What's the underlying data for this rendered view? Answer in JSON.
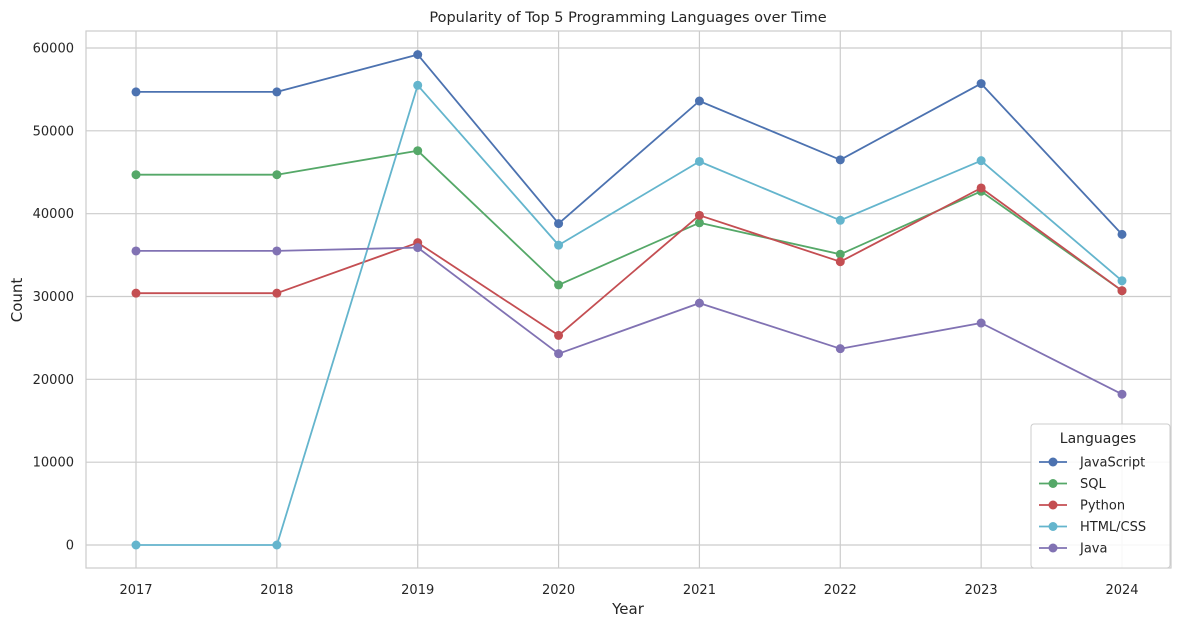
{
  "chart_data": {
    "type": "line",
    "title": "Popularity of Top 5 Programming Languages over Time",
    "xlabel": "Year",
    "ylabel": "Count",
    "x": [
      "2017",
      "2018",
      "2019",
      "2020",
      "2021",
      "2022",
      "2023",
      "2024"
    ],
    "y_ticks": [
      "0",
      "10000",
      "20000",
      "30000",
      "40000",
      "50000",
      "60000"
    ],
    "ylim": [
      -2900,
      62300
    ],
    "grid": true,
    "legend": {
      "title": "Languages",
      "placement": "lower-right"
    },
    "series": [
      {
        "name": "JavaScript",
        "color": "#4c72b0",
        "values": [
          54700,
          54700,
          59200,
          38800,
          53600,
          46500,
          55700,
          37500
        ]
      },
      {
        "name": "SQL",
        "color": "#55a868",
        "values": [
          44700,
          44700,
          47600,
          31400,
          38900,
          35100,
          42700,
          30700
        ]
      },
      {
        "name": "Python",
        "color": "#c44e52",
        "values": [
          30400,
          30400,
          36500,
          25300,
          39800,
          34200,
          43100,
          30700
        ]
      },
      {
        "name": "HTML/CSS",
        "color": "#64b5cd",
        "values": [
          0,
          0,
          55500,
          36200,
          46300,
          39200,
          46400,
          31900
        ]
      },
      {
        "name": "Java",
        "color": "#8172b3",
        "values": [
          35500,
          35500,
          35900,
          23100,
          29200,
          23700,
          26800,
          18200
        ]
      }
    ]
  }
}
